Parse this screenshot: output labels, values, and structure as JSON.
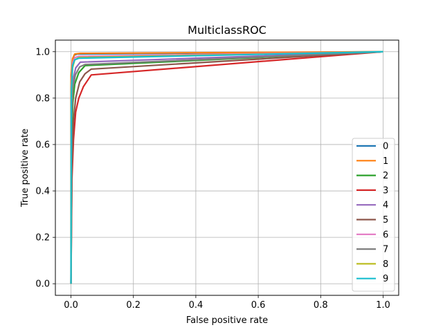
{
  "chart_data": {
    "type": "line",
    "title": "MulticlassROC",
    "xlabel": "False positive rate",
    "ylabel": "True positive rate",
    "xlim": [
      -0.05,
      1.05
    ],
    "ylim": [
      -0.05,
      1.05
    ],
    "xticks": [
      0.0,
      0.2,
      0.4,
      0.6,
      0.8,
      1.0
    ],
    "yticks": [
      0.0,
      0.2,
      0.4,
      0.6,
      0.8,
      1.0
    ],
    "xtick_labels": [
      "0.0",
      "0.2",
      "0.4",
      "0.6",
      "0.8",
      "1.0"
    ],
    "ytick_labels": [
      "0.0",
      "0.2",
      "0.4",
      "0.6",
      "0.8",
      "1.0"
    ],
    "grid": true,
    "legend_position": "lower-right",
    "series": [
      {
        "name": "0",
        "color": "#1f77b4",
        "points": [
          [
            0.0,
            0.0
          ],
          [
            0.0,
            0.85
          ],
          [
            0.004,
            0.95
          ],
          [
            0.01,
            0.985
          ],
          [
            0.02,
            0.99
          ],
          [
            1.0,
            1.0
          ]
        ]
      },
      {
        "name": "1",
        "color": "#ff7f0e",
        "points": [
          [
            0.0,
            0.0
          ],
          [
            0.0,
            0.9
          ],
          [
            0.005,
            0.97
          ],
          [
            0.012,
            0.99
          ],
          [
            0.03,
            0.993
          ],
          [
            1.0,
            1.0
          ]
        ]
      },
      {
        "name": "2",
        "color": "#2ca02c",
        "points": [
          [
            0.0,
            0.0
          ],
          [
            0.002,
            0.6
          ],
          [
            0.006,
            0.78
          ],
          [
            0.012,
            0.86
          ],
          [
            0.025,
            0.91
          ],
          [
            0.045,
            0.94
          ],
          [
            1.0,
            1.0
          ]
        ]
      },
      {
        "name": "3",
        "color": "#d62728",
        "points": [
          [
            0.0,
            0.0
          ],
          [
            0.003,
            0.45
          ],
          [
            0.008,
            0.62
          ],
          [
            0.015,
            0.74
          ],
          [
            0.025,
            0.8
          ],
          [
            0.04,
            0.85
          ],
          [
            0.065,
            0.9
          ],
          [
            1.0,
            1.0
          ]
        ]
      },
      {
        "name": "4",
        "color": "#9467bd",
        "points": [
          [
            0.0,
            0.0
          ],
          [
            0.002,
            0.75
          ],
          [
            0.007,
            0.88
          ],
          [
            0.015,
            0.93
          ],
          [
            0.03,
            0.955
          ],
          [
            1.0,
            1.0
          ]
        ]
      },
      {
        "name": "5",
        "color": "#8c564b",
        "points": [
          [
            0.0,
            0.0
          ],
          [
            0.003,
            0.5
          ],
          [
            0.008,
            0.7
          ],
          [
            0.015,
            0.8
          ],
          [
            0.028,
            0.87
          ],
          [
            0.045,
            0.905
          ],
          [
            0.065,
            0.925
          ],
          [
            1.0,
            1.0
          ]
        ]
      },
      {
        "name": "6",
        "color": "#e377c2",
        "points": [
          [
            0.0,
            0.0
          ],
          [
            0.001,
            0.85
          ],
          [
            0.005,
            0.95
          ],
          [
            0.012,
            0.975
          ],
          [
            0.025,
            0.98
          ],
          [
            1.0,
            1.0
          ]
        ]
      },
      {
        "name": "7",
        "color": "#7f7f7f",
        "points": [
          [
            0.0,
            0.0
          ],
          [
            0.002,
            0.7
          ],
          [
            0.006,
            0.84
          ],
          [
            0.014,
            0.9
          ],
          [
            0.028,
            0.935
          ],
          [
            0.045,
            0.945
          ],
          [
            1.0,
            1.0
          ]
        ]
      },
      {
        "name": "8",
        "color": "#bcbd22",
        "points": [
          [
            0.0,
            0.0
          ],
          [
            0.001,
            0.8
          ],
          [
            0.005,
            0.93
          ],
          [
            0.012,
            0.965
          ],
          [
            0.025,
            0.975
          ],
          [
            1.0,
            1.0
          ]
        ]
      },
      {
        "name": "9",
        "color": "#17becf",
        "points": [
          [
            0.0,
            0.0
          ],
          [
            0.001,
            0.82
          ],
          [
            0.005,
            0.94
          ],
          [
            0.012,
            0.965
          ],
          [
            0.025,
            0.972
          ],
          [
            1.0,
            1.0
          ]
        ]
      }
    ]
  }
}
